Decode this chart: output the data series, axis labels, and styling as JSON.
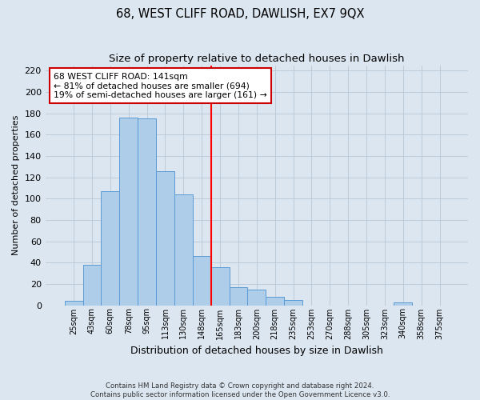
{
  "title": "68, WEST CLIFF ROAD, DAWLISH, EX7 9QX",
  "subtitle": "Size of property relative to detached houses in Dawlish",
  "xlabel": "Distribution of detached houses by size in Dawlish",
  "ylabel": "Number of detached properties",
  "bar_labels": [
    "25sqm",
    "43sqm",
    "60sqm",
    "78sqm",
    "95sqm",
    "113sqm",
    "130sqm",
    "148sqm",
    "165sqm",
    "183sqm",
    "200sqm",
    "218sqm",
    "235sqm",
    "253sqm",
    "270sqm",
    "288sqm",
    "305sqm",
    "323sqm",
    "340sqm",
    "358sqm",
    "375sqm"
  ],
  "bar_values": [
    4,
    38,
    107,
    176,
    175,
    126,
    104,
    46,
    36,
    17,
    15,
    8,
    5,
    0,
    0,
    0,
    0,
    0,
    3,
    0,
    0
  ],
  "bar_color": "#aecde8",
  "bar_edge_color": "#5b9bd5",
  "highlight_line_index": 7,
  "ylim": [
    0,
    225
  ],
  "yticks": [
    0,
    20,
    40,
    60,
    80,
    100,
    120,
    140,
    160,
    180,
    200,
    220
  ],
  "annotation_title": "68 WEST CLIFF ROAD: 141sqm",
  "annotation_line1": "← 81% of detached houses are smaller (694)",
  "annotation_line2": "19% of semi-detached houses are larger (161) →",
  "footer_line1": "Contains HM Land Registry data © Crown copyright and database right 2024.",
  "footer_line2": "Contains public sector information licensed under the Open Government Licence v3.0.",
  "bg_color": "#dce6f0"
}
